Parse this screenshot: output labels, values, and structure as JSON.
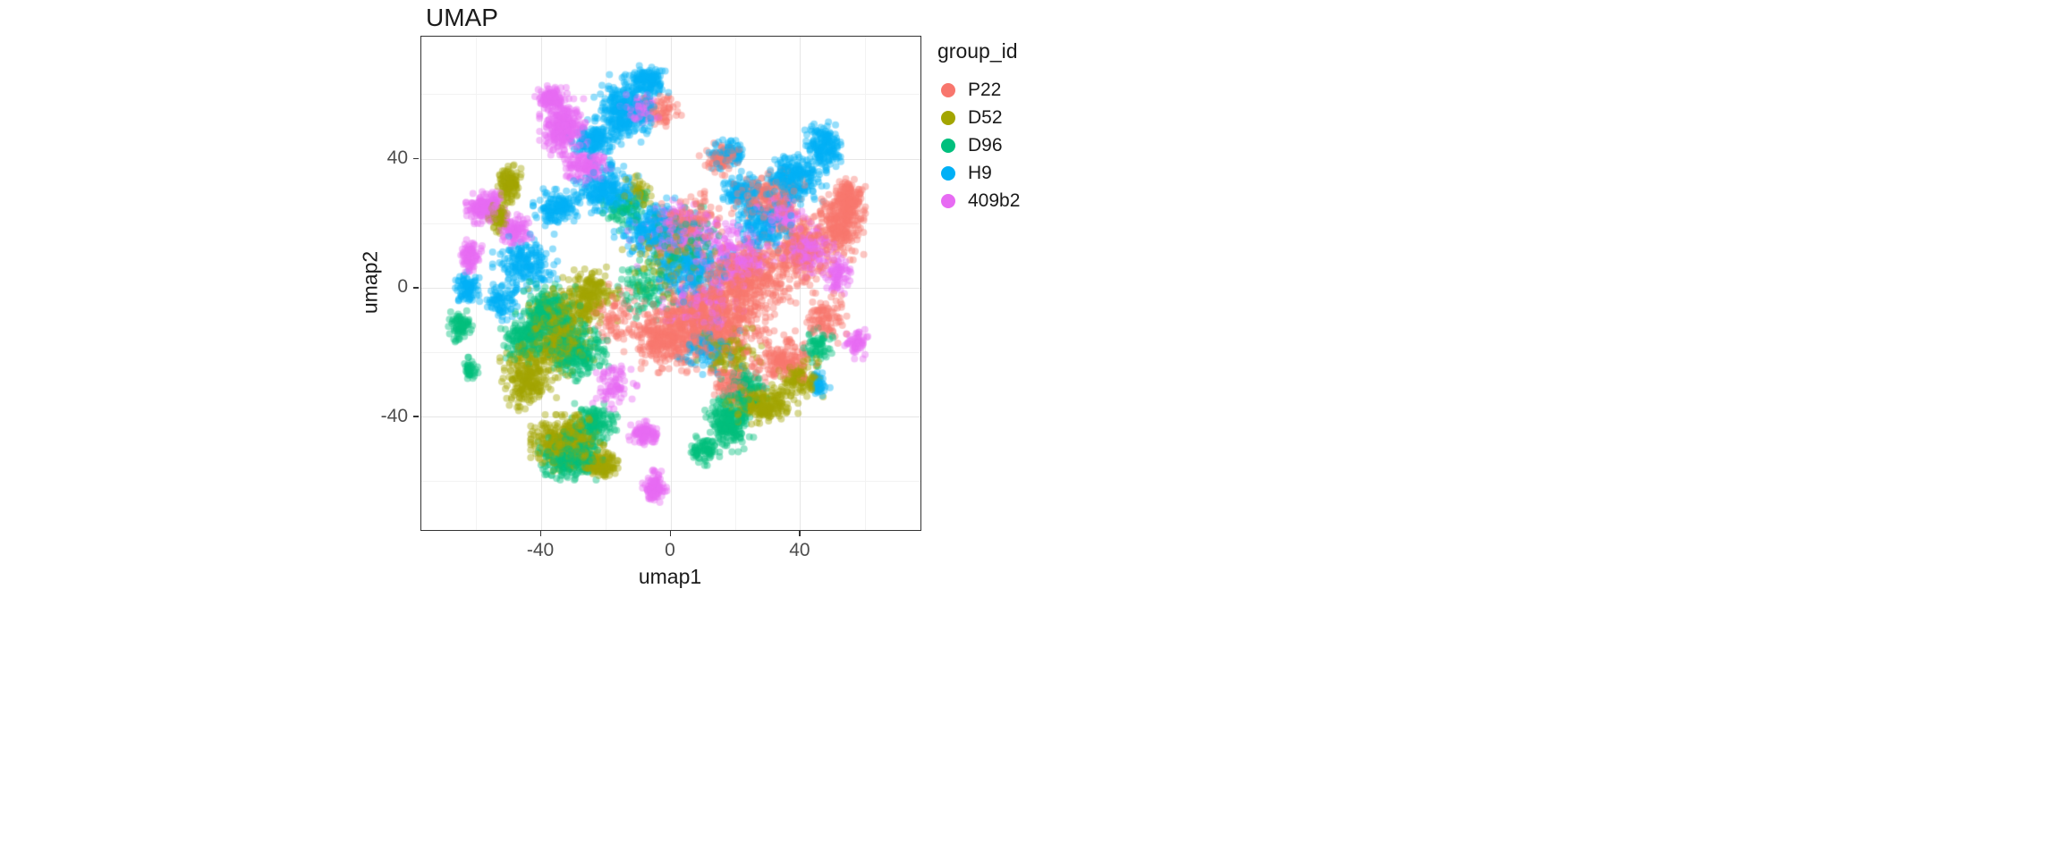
{
  "title": "UMAP",
  "axes": {
    "x": {
      "label": "umap1",
      "tick_labels": [
        "-40",
        "0",
        "40"
      ]
    },
    "y": {
      "label": "umap2",
      "tick_labels": [
        "40",
        "0",
        "-40"
      ]
    }
  },
  "legend": {
    "title": "group_id",
    "items": [
      {
        "label": "P22",
        "color": "#F8766D"
      },
      {
        "label": "D52",
        "color": "#A3A500"
      },
      {
        "label": "D96",
        "color": "#00BF7D"
      },
      {
        "label": "H9",
        "color": "#00B0F6"
      },
      {
        "label": "409b2",
        "color": "#E76BF3"
      }
    ]
  },
  "chart_data": {
    "type": "scatter",
    "title": "UMAP",
    "xlabel": "umap1",
    "ylabel": "umap2",
    "xlim": [
      -77,
      77
    ],
    "ylim": [
      -75,
      78
    ],
    "xticks": [
      -40,
      0,
      40
    ],
    "yticks": [
      -40,
      0,
      40
    ],
    "minor_xticks": [
      -60,
      -20,
      20,
      60
    ],
    "minor_yticks": [
      -60,
      -20,
      20,
      60
    ],
    "grid": true,
    "legend_title": "group_id",
    "legend_position": "right",
    "point_radius_px": 4.0,
    "point_alpha": 0.42,
    "series": [
      {
        "name": "P22",
        "color": "#F8766D",
        "clusters": [
          [
            12,
            -10,
            16,
            13,
            800
          ],
          [
            24,
            3,
            12,
            10,
            400
          ],
          [
            -2,
            -15,
            10,
            8,
            250
          ],
          [
            40,
            12,
            9,
            10,
            250
          ],
          [
            52,
            20,
            6,
            9,
            250
          ],
          [
            55,
            28,
            4,
            5,
            150
          ],
          [
            30,
            28,
            9,
            7,
            200
          ],
          [
            15,
            40,
            5,
            4,
            80
          ],
          [
            -3,
            55,
            5,
            4,
            60
          ],
          [
            35,
            -22,
            8,
            7,
            180
          ],
          [
            48,
            -10,
            5,
            7,
            100
          ],
          [
            20,
            -30,
            7,
            5,
            100
          ],
          [
            -18,
            -8,
            6,
            8,
            80
          ],
          [
            5,
            20,
            10,
            8,
            150
          ]
        ]
      },
      {
        "name": "D52",
        "color": "#A3A500",
        "clusters": [
          [
            -35,
            -14,
            9,
            11,
            450
          ],
          [
            -44,
            -28,
            7,
            8,
            250
          ],
          [
            -32,
            -48,
            9,
            7,
            500
          ],
          [
            -22,
            -55,
            5,
            4,
            150
          ],
          [
            -50,
            32,
            3,
            5,
            130
          ],
          [
            -53,
            22,
            3,
            4,
            80
          ],
          [
            -25,
            -2,
            7,
            7,
            200
          ],
          [
            28,
            -36,
            9,
            5,
            250
          ],
          [
            40,
            -28,
            6,
            5,
            130
          ],
          [
            18,
            -20,
            8,
            6,
            120
          ],
          [
            0,
            8,
            12,
            10,
            100
          ],
          [
            -10,
            30,
            5,
            4,
            50
          ]
        ]
      },
      {
        "name": "D96",
        "color": "#00BF7D",
        "clusters": [
          [
            -38,
            -8,
            8,
            8,
            300
          ],
          [
            -29,
            -20,
            8,
            7,
            250
          ],
          [
            -45,
            -16,
            6,
            6,
            150
          ],
          [
            -31,
            -52,
            8,
            6,
            300
          ],
          [
            -24,
            -42,
            6,
            5,
            150
          ],
          [
            -65,
            -12,
            3,
            4,
            80
          ],
          [
            -62,
            -25,
            2,
            3,
            40
          ],
          [
            18,
            -42,
            6,
            7,
            250
          ],
          [
            23,
            -31,
            6,
            5,
            130
          ],
          [
            10,
            -50,
            4,
            4,
            80
          ],
          [
            3,
            14,
            10,
            9,
            120
          ],
          [
            -14,
            24,
            6,
            5,
            80
          ],
          [
            45,
            -18,
            4,
            5,
            70
          ],
          [
            -8,
            0,
            8,
            8,
            100
          ]
        ]
      },
      {
        "name": "H9",
        "color": "#00B0F6",
        "clusters": [
          [
            -14,
            55,
            8,
            9,
            350
          ],
          [
            -7,
            64,
            5,
            4,
            150
          ],
          [
            -24,
            46,
            6,
            5,
            150
          ],
          [
            -20,
            30,
            8,
            7,
            250
          ],
          [
            -35,
            25,
            6,
            5,
            150
          ],
          [
            -5,
            18,
            10,
            8,
            250
          ],
          [
            6,
            6,
            12,
            9,
            250
          ],
          [
            38,
            34,
            8,
            7,
            250
          ],
          [
            47,
            44,
            5,
            6,
            180
          ],
          [
            29,
            20,
            8,
            7,
            200
          ],
          [
            -45,
            8,
            8,
            7,
            200
          ],
          [
            -63,
            0,
            4,
            4,
            100
          ],
          [
            -52,
            -4,
            5,
            5,
            90
          ],
          [
            12,
            -18,
            8,
            7,
            130
          ],
          [
            18,
            42,
            5,
            4,
            80
          ],
          [
            46,
            -30,
            3,
            3,
            40
          ],
          [
            22,
            30,
            6,
            5,
            120
          ]
        ]
      },
      {
        "name": "409b2",
        "color": "#E76BF3",
        "clusters": [
          [
            -33,
            50,
            6,
            7,
            300
          ],
          [
            -37,
            59,
            4,
            3,
            130
          ],
          [
            -26,
            38,
            6,
            5,
            150
          ],
          [
            -57,
            25,
            5,
            4,
            200
          ],
          [
            -62,
            10,
            3,
            4,
            90
          ],
          [
            -48,
            18,
            4,
            4,
            100
          ],
          [
            3,
            17,
            13,
            9,
            220
          ],
          [
            20,
            10,
            10,
            8,
            200
          ],
          [
            42,
            12,
            7,
            7,
            170
          ],
          [
            34,
            24,
            6,
            5,
            120
          ],
          [
            52,
            4,
            4,
            5,
            80
          ],
          [
            -8,
            -45,
            4,
            3,
            110
          ],
          [
            -5,
            -62,
            3,
            5,
            110
          ],
          [
            -18,
            -30,
            6,
            6,
            80
          ],
          [
            57,
            -17,
            3,
            4,
            60
          ],
          [
            10,
            -5,
            10,
            8,
            150
          ],
          [
            -10,
            55,
            5,
            4,
            80
          ]
        ]
      }
    ]
  }
}
